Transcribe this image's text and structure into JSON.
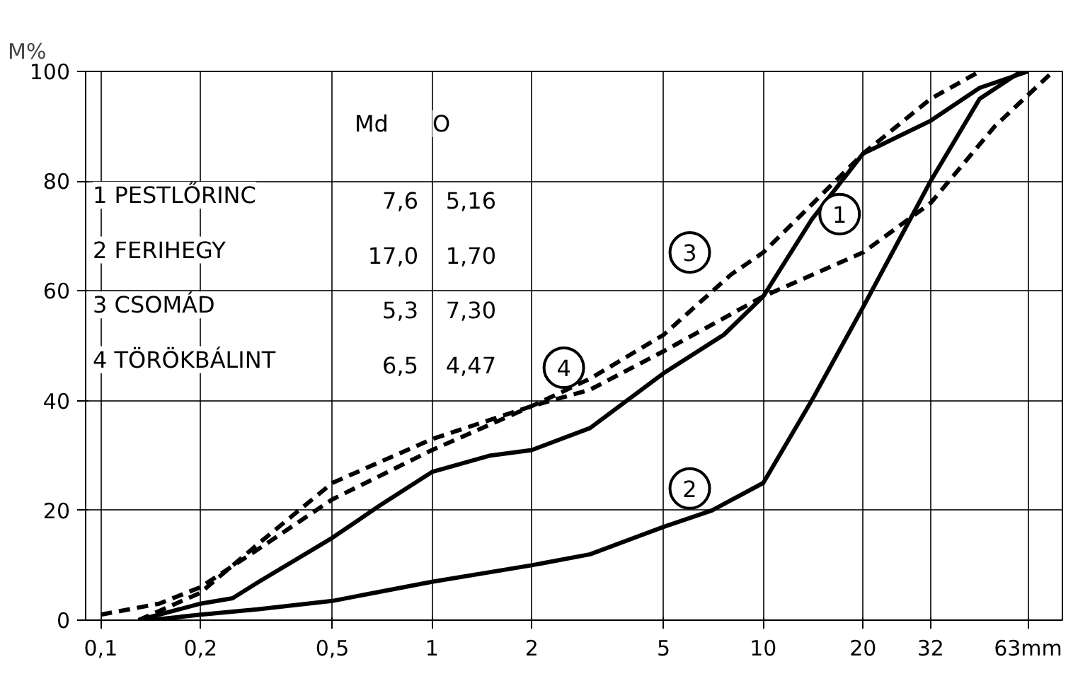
{
  "chart_data": {
    "type": "line",
    "ylabel": "M%",
    "log": "x",
    "grid": true,
    "marker": "none",
    "xlim": [
      0.09,
      80
    ],
    "ylim": [
      0,
      100
    ],
    "xticks": [
      {
        "value": 0.1,
        "label": "0,1"
      },
      {
        "value": 0.2,
        "label": "0,2"
      },
      {
        "value": 0.5,
        "label": "0,5"
      },
      1,
      2,
      5,
      10,
      20,
      32,
      {
        "value": 63,
        "label": "63mm"
      }
    ],
    "yticks": [
      0,
      20,
      40,
      60,
      80,
      100
    ],
    "series": [
      {
        "color": "#000000",
        "line_style": "solid",
        "x": [
          0.13,
          0.2,
          0.25,
          0.3,
          0.5,
          0.7,
          1,
          1.5,
          2,
          3,
          5,
          7.6,
          10,
          14,
          20,
          32,
          45,
          63
        ],
        "values": [
          0,
          3,
          4,
          7,
          15,
          21,
          27,
          30,
          31,
          35,
          45,
          52,
          59,
          73,
          85,
          91,
          97,
          100
        ]
      },
      {
        "color": "#000000",
        "line_style": "solid",
        "x": [
          0.14,
          0.2,
          0.3,
          0.5,
          1,
          2,
          3,
          5,
          7,
          10,
          14,
          20,
          32,
          45,
          60
        ],
        "values": [
          0,
          1,
          2,
          3.5,
          7,
          10,
          12,
          17,
          20,
          25,
          40,
          57,
          80,
          95,
          100
        ]
      },
      {
        "color": "#000000",
        "line_style": "dashed",
        "x": [
          0.1,
          0.15,
          0.2,
          0.3,
          0.5,
          1,
          2,
          3,
          5,
          8,
          10,
          20,
          32,
          45
        ],
        "values": [
          1,
          3,
          6,
          13,
          22,
          31,
          39,
          44,
          52,
          63,
          67,
          85,
          95,
          100
        ]
      },
      {
        "color": "#000000",
        "line_style": "dashed",
        "x": [
          0.13,
          0.2,
          0.3,
          0.5,
          1,
          2,
          3,
          5,
          10,
          20,
          32,
          50,
          75
        ],
        "values": [
          0,
          5,
          14,
          25,
          33,
          39,
          42,
          49,
          59,
          67,
          76,
          90,
          100
        ]
      }
    ],
    "annotations": [
      "Md",
      "O",
      "1 PESTLŐRINC",
      "7,6",
      "5,16",
      "2 FERIHEGY",
      "17,0",
      "1,70",
      "3 CSOMÁD",
      "5,3",
      "7,30",
      "4 TÖRÖKBÁLINT",
      "6,5",
      "4,47",
      {
        "text": "1",
        "x": 17,
        "y": 74
      },
      {
        "text": "2",
        "x": 6,
        "y": 24
      },
      {
        "text": "3",
        "x": 6,
        "y": 67
      },
      {
        "text": "4",
        "x": 2.5,
        "y": 46
      }
    ]
  }
}
